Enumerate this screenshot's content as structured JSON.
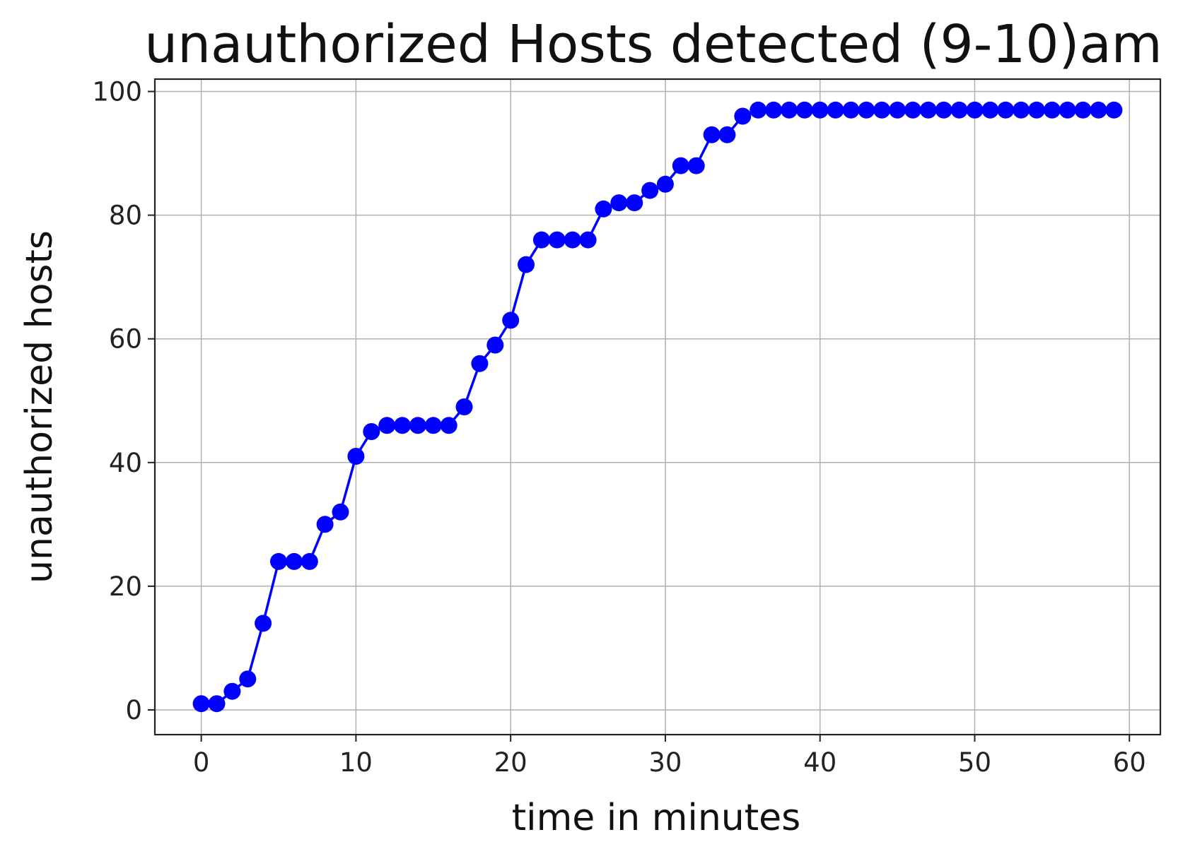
{
  "chart_data": {
    "type": "line",
    "title": "unauthorized Hosts detected (9-10)am",
    "xlabel": "time in minutes",
    "ylabel": "unauthorized hosts",
    "xlim": [
      -3,
      62
    ],
    "ylim": [
      -4,
      102
    ],
    "xticks": [
      0,
      10,
      20,
      30,
      40,
      50,
      60
    ],
    "yticks": [
      0,
      20,
      40,
      60,
      80,
      100
    ],
    "xtick_labels": [
      "0",
      "10",
      "20",
      "30",
      "40",
      "50",
      "60"
    ],
    "ytick_labels": [
      "0",
      "20",
      "40",
      "60",
      "80",
      "100"
    ],
    "grid": true,
    "marker": "circle",
    "series_color": "#0000ff",
    "series": [
      {
        "x": [
          0,
          1,
          2,
          3,
          4,
          5,
          6,
          7,
          8,
          9,
          10,
          11,
          12,
          13,
          14,
          15,
          16,
          17,
          18,
          19,
          20,
          21,
          22,
          23,
          24,
          25,
          26,
          27,
          28,
          29,
          30,
          31,
          32,
          33,
          34,
          35,
          36,
          37,
          38,
          39,
          40,
          41,
          42,
          43,
          44,
          45,
          46,
          47,
          48,
          49,
          50,
          51,
          52,
          53,
          54,
          55,
          56,
          57,
          58,
          59
        ],
        "y": [
          1,
          1,
          3,
          5,
          14,
          24,
          24,
          24,
          30,
          32,
          41,
          45,
          46,
          46,
          46,
          46,
          46,
          49,
          56,
          59,
          63,
          72,
          76,
          76,
          76,
          76,
          81,
          82,
          82,
          84,
          85,
          88,
          88,
          93,
          93,
          96,
          97,
          97,
          97,
          97,
          97,
          97,
          97,
          97,
          97,
          97,
          97,
          97,
          97,
          97,
          97,
          97,
          97,
          97,
          97,
          97,
          97,
          97,
          97,
          97
        ]
      }
    ]
  }
}
